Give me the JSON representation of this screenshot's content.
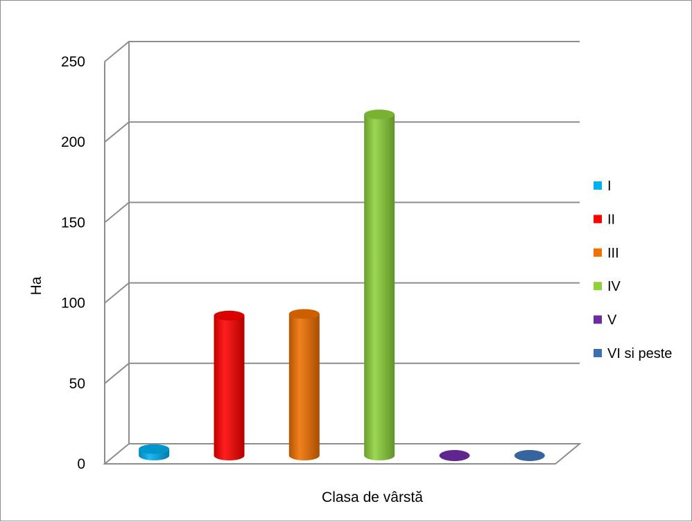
{
  "chart_data": {
    "type": "bar",
    "style": "3d-cylinder",
    "xlabel": "Clasa de vârstă",
    "ylabel": "Ha",
    "ylim": [
      0,
      250
    ],
    "yticks": [
      0,
      50,
      100,
      150,
      200,
      250
    ],
    "grid": true,
    "legend_position": "right",
    "series": [
      {
        "name": "I",
        "value": 4,
        "color": "#00b0f0"
      },
      {
        "name": "II",
        "value": 87,
        "color": "#ff0000"
      },
      {
        "name": "III",
        "value": 88,
        "color": "#f07000"
      },
      {
        "name": "IV",
        "value": 212,
        "color": "#8ed13a"
      },
      {
        "name": "V",
        "value": 0,
        "color": "#6a2aa0"
      },
      {
        "name": "VI si peste",
        "value": 0,
        "color": "#3d6fb0"
      }
    ]
  }
}
